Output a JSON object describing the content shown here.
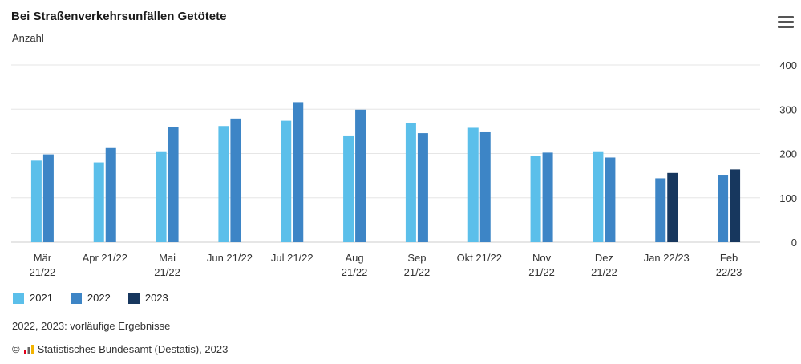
{
  "title": "Bei Straßenverkehrsunfällen Getötete",
  "subtitle": "Anzahl",
  "menu_icon": "hamburger-menu-icon",
  "note": "2022, 2023: vorläufige Ergebnisse",
  "credits": {
    "symbol": "©",
    "text": "Statistisches Bundesamt (Destatis), 2023",
    "logo_icon": "destatis-bar-logo-icon"
  },
  "chart_data": {
    "type": "bar",
    "title": "Bei Straßenverkehrsunfällen Getötete",
    "subtitle": "Anzahl",
    "xlabel": "",
    "ylabel": "",
    "ylim": [
      0,
      400
    ],
    "yticks": [
      0,
      100,
      200,
      300,
      400
    ],
    "y_axis_position": "right",
    "grid": true,
    "legend_position": "bottom-left",
    "categories": [
      [
        "Mär",
        "21/22"
      ],
      [
        "Apr 21/22"
      ],
      [
        "Mai",
        "21/22"
      ],
      [
        "Jun 21/22"
      ],
      [
        "Jul 21/22"
      ],
      [
        "Aug",
        "21/22"
      ],
      [
        "Sep",
        "21/22"
      ],
      [
        "Okt 21/22"
      ],
      [
        "Nov",
        "21/22"
      ],
      [
        "Dez",
        "21/22"
      ],
      [
        "Jan 22/23"
      ],
      [
        "Feb",
        "22/23"
      ]
    ],
    "series": [
      {
        "name": "2021",
        "color": "#5bbfea",
        "values": [
          184,
          180,
          205,
          262,
          274,
          239,
          268,
          258,
          194,
          205,
          null,
          null
        ]
      },
      {
        "name": "2022",
        "color": "#3d85c6",
        "values": [
          198,
          214,
          260,
          279,
          316,
          299,
          246,
          248,
          202,
          191,
          144,
          152
        ]
      },
      {
        "name": "2023",
        "color": "#17375e",
        "values": [
          null,
          null,
          null,
          null,
          null,
          null,
          null,
          null,
          null,
          null,
          156,
          164
        ]
      }
    ]
  }
}
